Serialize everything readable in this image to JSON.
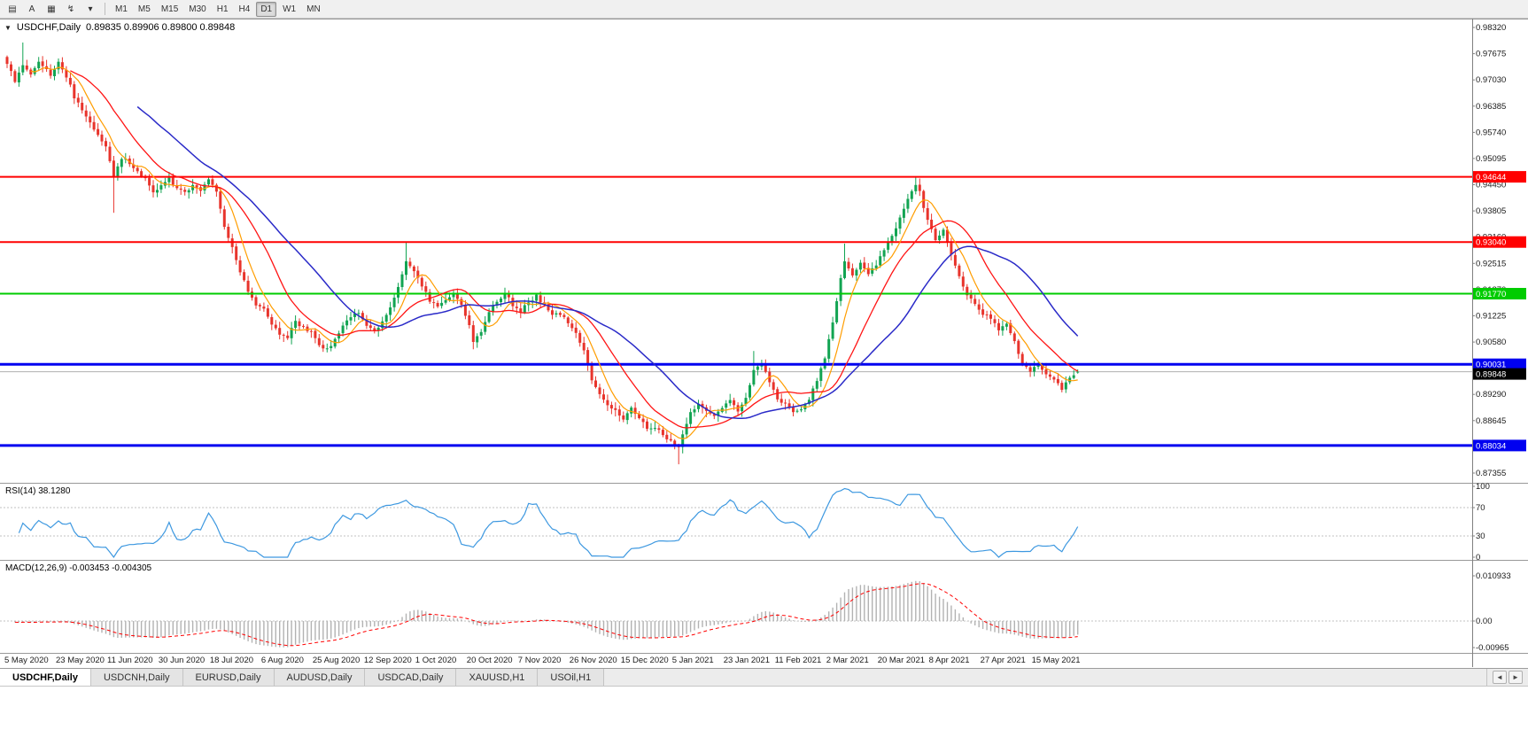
{
  "toolbar": {
    "icon_buttons": [
      {
        "name": "charts-list-icon",
        "glyph": "▤"
      },
      {
        "name": "auto-arrange-button",
        "glyph": "A"
      },
      {
        "name": "chart-window-icon",
        "glyph": "▦"
      },
      {
        "name": "indicators-icon",
        "glyph": "↯"
      },
      {
        "name": "indicators-caret-icon",
        "glyph": "▾"
      }
    ],
    "timeframes": [
      {
        "label": "M1",
        "active": false
      },
      {
        "label": "M5",
        "active": false
      },
      {
        "label": "M15",
        "active": false
      },
      {
        "label": "M30",
        "active": false
      },
      {
        "label": "H1",
        "active": false
      },
      {
        "label": "H4",
        "active": false
      },
      {
        "label": "D1",
        "active": true
      },
      {
        "label": "W1",
        "active": false
      },
      {
        "label": "MN",
        "active": false
      }
    ]
  },
  "chart": {
    "dropdown_glyph": "▼",
    "symbol_title": "USDCHF,Daily",
    "ohlc_text": "0.89835 0.89906 0.89800 0.89848"
  },
  "indicators": {
    "rsi_label": "RSI(14) 38.1280",
    "macd_label": "MACD(12,26,9) -0.003453 -0.004305"
  },
  "tabs": [
    {
      "label": "USDCHF,Daily",
      "active": true
    },
    {
      "label": "USDCNH,Daily",
      "active": false
    },
    {
      "label": "EURUSD,Daily",
      "active": false
    },
    {
      "label": "AUDUSD,Daily",
      "active": false
    },
    {
      "label": "USDCAD,Daily",
      "active": false
    },
    {
      "label": "XAUUSD,H1",
      "active": false
    },
    {
      "label": "USOil,H1",
      "active": false
    }
  ],
  "tab_scroll": {
    "left": "◄",
    "right": "►"
  },
  "chart_data": {
    "type": "candlestick",
    "symbol": "USDCHF",
    "timeframe": "Daily",
    "displayed_ohlc": {
      "open": 0.89835,
      "high": 0.89906,
      "low": 0.898,
      "close": 0.89848
    },
    "price_axis": {
      "max": 0.9832,
      "min": 0.87355,
      "ticks": [
        "0.98320",
        "0.97675",
        "0.97030",
        "0.96385",
        "0.95740",
        "0.95095",
        "0.94450",
        "0.93805",
        "0.93160",
        "0.92515",
        "0.91870",
        "0.91225",
        "0.90580",
        "0.89935",
        "0.89290",
        "0.88645",
        "0.88000",
        "0.87355"
      ]
    },
    "date_labels": [
      "5 May 2020",
      "23 May 2020",
      "11 Jun 2020",
      "30 Jun 2020",
      "18 Jul 2020",
      "6 Aug 2020",
      "25 Aug 2020",
      "12 Sep 2020",
      "1 Oct 2020",
      "20 Oct 2020",
      "7 Nov 2020",
      "26 Nov 2020",
      "15 Dec 2020",
      "5 Jan 2021",
      "23 Jan 2021",
      "11 Feb 2021",
      "2 Mar 2021",
      "20 Mar 2021",
      "8 Apr 2021",
      "27 Apr 2021",
      "15 May 2021"
    ],
    "label_step": 13,
    "num_candles": 272,
    "waypoints": [
      [
        0,
        0.9745
      ],
      [
        2,
        0.9702
      ],
      [
        4,
        0.974
      ],
      [
        6,
        0.9712
      ],
      [
        8,
        0.9744
      ],
      [
        11,
        0.9716
      ],
      [
        13,
        0.9745
      ],
      [
        15,
        0.9712
      ],
      [
        17,
        0.9662
      ],
      [
        19,
        0.9625
      ],
      [
        21,
        0.96
      ],
      [
        23,
        0.9566
      ],
      [
        25,
        0.9542
      ],
      [
        27,
        0.9468
      ],
      [
        29,
        0.9512
      ],
      [
        31,
        0.9498
      ],
      [
        33,
        0.9478
      ],
      [
        35,
        0.946
      ],
      [
        37,
        0.9426
      ],
      [
        39,
        0.9446
      ],
      [
        41,
        0.946
      ],
      [
        43,
        0.9438
      ],
      [
        45,
        0.9424
      ],
      [
        47,
        0.9446
      ],
      [
        49,
        0.9426
      ],
      [
        51,
        0.946
      ],
      [
        53,
        0.9428
      ],
      [
        55,
        0.9345
      ],
      [
        57,
        0.9288
      ],
      [
        59,
        0.9232
      ],
      [
        61,
        0.9182
      ],
      [
        63,
        0.9152
      ],
      [
        65,
        0.9136
      ],
      [
        67,
        0.91
      ],
      [
        69,
        0.9078
      ],
      [
        71,
        0.9072
      ],
      [
        73,
        0.9106
      ],
      [
        75,
        0.9096
      ],
      [
        77,
        0.908
      ],
      [
        79,
        0.9052
      ],
      [
        81,
        0.9038
      ],
      [
        83,
        0.9066
      ],
      [
        85,
        0.91
      ],
      [
        87,
        0.9122
      ],
      [
        89,
        0.9126
      ],
      [
        91,
        0.9094
      ],
      [
        93,
        0.9086
      ],
      [
        95,
        0.9108
      ],
      [
        97,
        0.9142
      ],
      [
        99,
        0.9192
      ],
      [
        101,
        0.9258
      ],
      [
        103,
        0.923
      ],
      [
        105,
        0.9198
      ],
      [
        107,
        0.9158
      ],
      [
        109,
        0.9146
      ],
      [
        111,
        0.9158
      ],
      [
        113,
        0.9174
      ],
      [
        115,
        0.915
      ],
      [
        117,
        0.91
      ],
      [
        118,
        0.9058
      ],
      [
        120,
        0.9085
      ],
      [
        122,
        0.913
      ],
      [
        124,
        0.916
      ],
      [
        126,
        0.9178
      ],
      [
        128,
        0.915
      ],
      [
        130,
        0.9132
      ],
      [
        132,
        0.9158
      ],
      [
        134,
        0.917
      ],
      [
        136,
        0.9148
      ],
      [
        138,
        0.9125
      ],
      [
        140,
        0.9128
      ],
      [
        142,
        0.9105
      ],
      [
        144,
        0.908
      ],
      [
        146,
        0.9038
      ],
      [
        148,
        0.896
      ],
      [
        150,
        0.8928
      ],
      [
        152,
        0.89
      ],
      [
        154,
        0.8888
      ],
      [
        156,
        0.8868
      ],
      [
        158,
        0.8898
      ],
      [
        160,
        0.887
      ],
      [
        162,
        0.8845
      ],
      [
        164,
        0.8848
      ],
      [
        166,
        0.883
      ],
      [
        168,
        0.8812
      ],
      [
        170,
        0.88
      ],
      [
        171,
        0.8835
      ],
      [
        173,
        0.8885
      ],
      [
        175,
        0.8908
      ],
      [
        177,
        0.889
      ],
      [
        179,
        0.8872
      ],
      [
        181,
        0.8895
      ],
      [
        183,
        0.8912
      ],
      [
        185,
        0.889
      ],
      [
        187,
        0.892
      ],
      [
        189,
        0.899
      ],
      [
        191,
        0.9005
      ],
      [
        193,
        0.896
      ],
      [
        195,
        0.8915
      ],
      [
        197,
        0.8905
      ],
      [
        199,
        0.889
      ],
      [
        201,
        0.889
      ],
      [
        203,
        0.892
      ],
      [
        205,
        0.896
      ],
      [
        207,
        0.902
      ],
      [
        209,
        0.9105
      ],
      [
        211,
        0.9215
      ],
      [
        212,
        0.9255
      ],
      [
        214,
        0.9222
      ],
      [
        216,
        0.9256
      ],
      [
        218,
        0.9222
      ],
      [
        220,
        0.925
      ],
      [
        222,
        0.9282
      ],
      [
        224,
        0.932
      ],
      [
        226,
        0.936
      ],
      [
        228,
        0.9412
      ],
      [
        230,
        0.9448
      ],
      [
        231,
        0.9428
      ],
      [
        233,
        0.9355
      ],
      [
        235,
        0.9312
      ],
      [
        237,
        0.933
      ],
      [
        239,
        0.9275
      ],
      [
        241,
        0.922
      ],
      [
        243,
        0.9175
      ],
      [
        245,
        0.915
      ],
      [
        247,
        0.9126
      ],
      [
        249,
        0.9118
      ],
      [
        251,
        0.9085
      ],
      [
        253,
        0.9105
      ],
      [
        255,
        0.9058
      ],
      [
        257,
        0.9006
      ],
      [
        259,
        0.8986
      ],
      [
        261,
        0.9004
      ],
      [
        263,
        0.898
      ],
      [
        265,
        0.8962
      ],
      [
        267,
        0.8942
      ],
      [
        269,
        0.897
      ],
      [
        271,
        0.89848
      ]
    ],
    "wick_overrides": {
      "4": {
        "high": 0.9795
      },
      "27": {
        "low": 0.9376
      },
      "101": {
        "high": 0.9304
      },
      "118": {
        "low": 0.904
      },
      "170": {
        "low": 0.8757
      },
      "189": {
        "high": 0.9036
      },
      "212": {
        "high": 0.93
      },
      "230": {
        "high": 0.94644
      },
      "267": {
        "low": 0.8934
      }
    },
    "last_candle": {
      "o": 0.89835,
      "h": 0.89906,
      "l": 0.898,
      "c": 0.89848
    },
    "hlines": [
      {
        "price": 0.94644,
        "label": "0.94644",
        "color": "#ff0000",
        "width": 2
      },
      {
        "price": 0.9304,
        "label": "0.93040",
        "color": "#ff0000",
        "width": 2
      },
      {
        "price": 0.9177,
        "label": "0.91770",
        "color": "#00cc00",
        "width": 2
      },
      {
        "price": 0.90031,
        "label": "0.90031",
        "color": "#0000f0",
        "width": 3
      },
      {
        "price": 0.88034,
        "label": "0.88034",
        "color": "#0000f0",
        "width": 3
      }
    ],
    "current_price": {
      "value": 0.89848,
      "label": "0.89848"
    },
    "mas": [
      {
        "period": 7,
        "color": "#ff9d00",
        "width": 1.2
      },
      {
        "period": 17,
        "color": "#ff1414",
        "width": 1.3
      },
      {
        "period": 34,
        "color": "#2a2ac8",
        "width": 1.5
      }
    ],
    "rsi": {
      "period": 14,
      "value_label": "38.1280",
      "levels": [
        100,
        70,
        30,
        0
      ],
      "color": "#3d98e0"
    },
    "macd": {
      "fast": 12,
      "slow": 26,
      "signal": 9,
      "axis_labels": [
        "0.010933",
        "0.00",
        "-0.00965"
      ],
      "hist_color": "#b2b2b2",
      "signal_color": "#ff0000"
    },
    "colors": {
      "up": "#12a452",
      "down": "#e8342c",
      "bid_line": "#b0b0b0"
    }
  }
}
